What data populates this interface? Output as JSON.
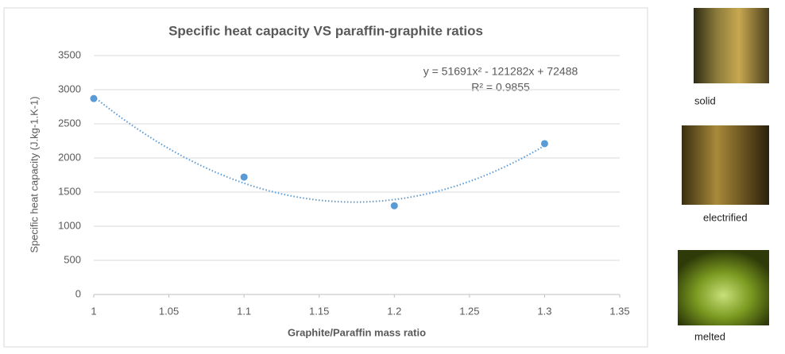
{
  "chart_data": {
    "type": "scatter",
    "title": "Specific heat capacity VS paraffin-graphite ratios",
    "x_label": "Graphite/Paraffin mass ratio",
    "y_label": "Specific heat capacity (J.kg-1.K-1)",
    "x": [
      1,
      1.1,
      1.2,
      1.3
    ],
    "values": [
      2870,
      1720,
      1300,
      2210
    ],
    "color": "#5b9bd5",
    "trendline": "polynomial",
    "annotations": [
      "y = 51691x² - 121282x + 72488",
      "R² = 0.9855"
    ],
    "xlim": [
      1,
      1.35
    ],
    "xticks": [
      1,
      1.05,
      1.1,
      1.15,
      1.2,
      1.25,
      1.3,
      1.35
    ],
    "ylim": [
      0,
      3500
    ],
    "yticks": [
      0,
      500,
      1000,
      1500,
      2000,
      2500,
      3000,
      3500
    ],
    "grid": true
  },
  "photos": [
    {
      "caption": "solid"
    },
    {
      "caption": "electrified"
    },
    {
      "caption": "melted"
    }
  ]
}
